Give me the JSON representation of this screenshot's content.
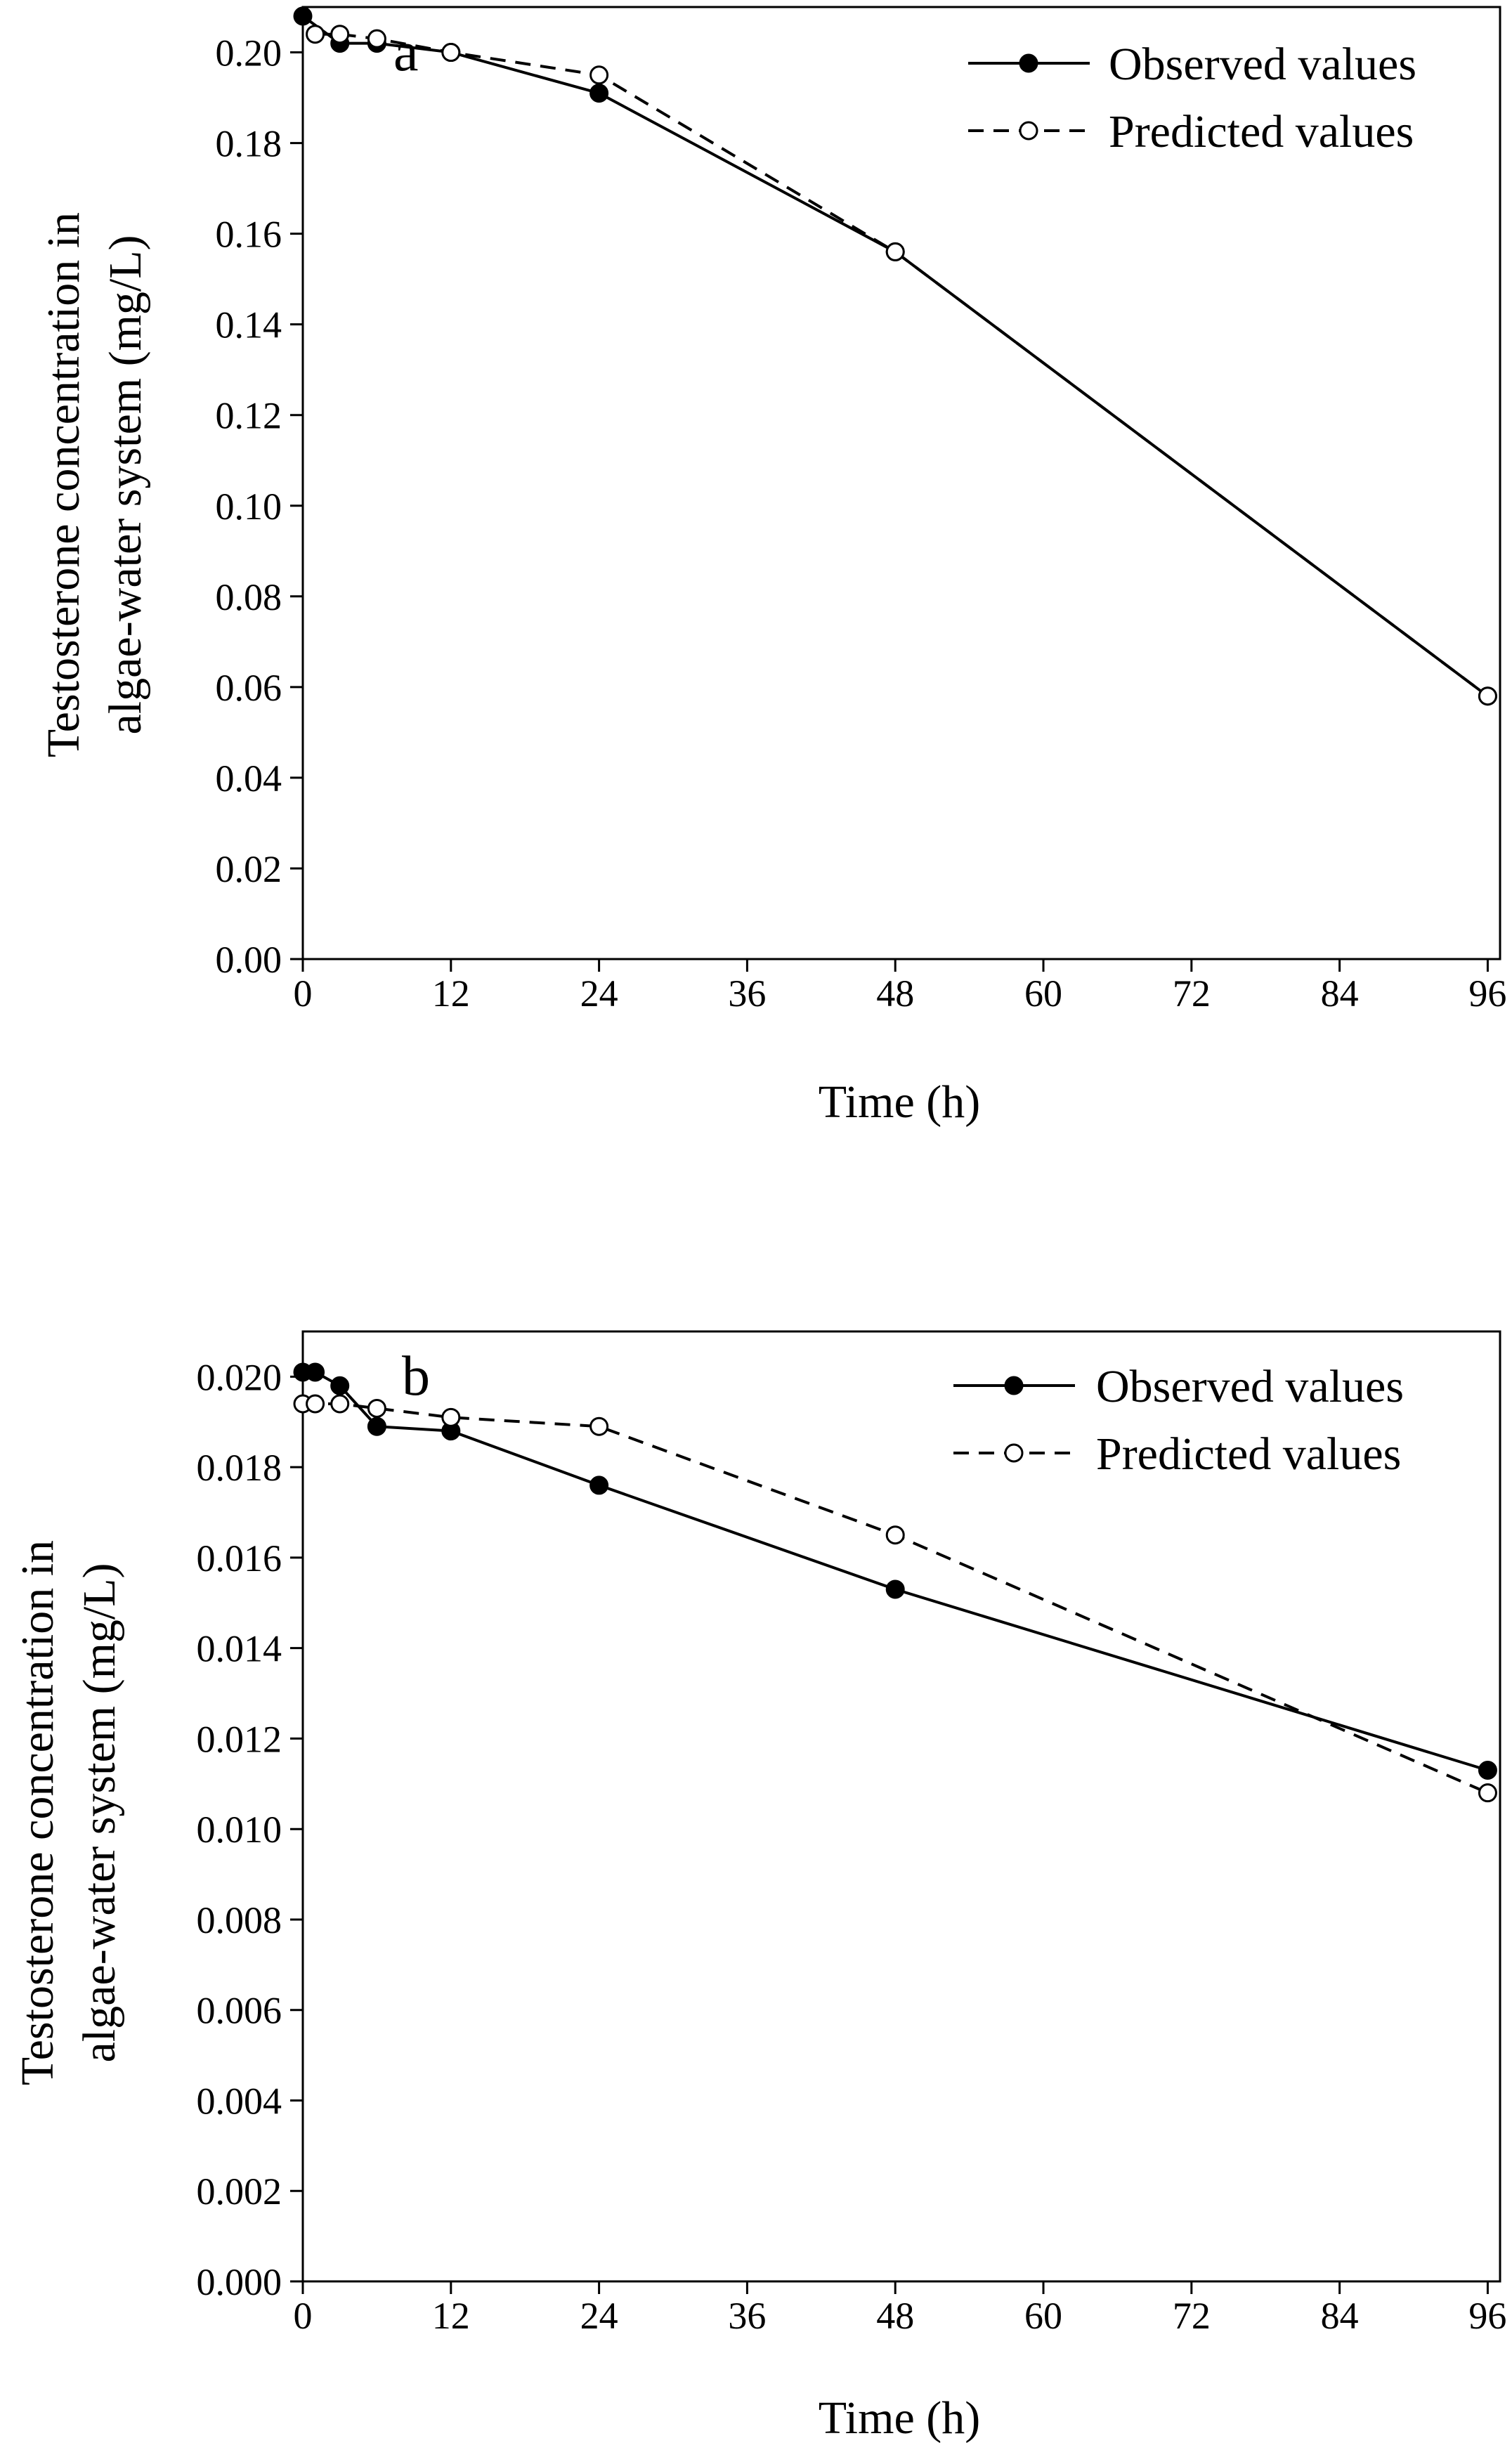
{
  "chart_data": [
    {
      "type": "line",
      "panel_label": "a",
      "xlabel": "Time (h)",
      "ylabel_lines": [
        "Testosterone concentration in",
        "algae-water system (mg/L)"
      ],
      "xlim": [
        0,
        97
      ],
      "ylim": [
        0,
        0.21
      ],
      "xticks": [
        0,
        12,
        24,
        36,
        48,
        60,
        72,
        84,
        96
      ],
      "xtick_labels": [
        "0",
        "12",
        "24",
        "36",
        "48",
        "60",
        "72",
        "84",
        "96"
      ],
      "yticks": [
        0,
        0.02,
        0.04,
        0.06,
        0.08,
        0.1,
        0.12,
        0.14,
        0.16,
        0.18,
        0.2
      ],
      "ytick_labels": [
        "0.00",
        "0.02",
        "0.04",
        "0.06",
        "0.08",
        "0.10",
        "0.12",
        "0.14",
        "0.16",
        "0.18",
        "0.20"
      ],
      "legend_position": "top-right",
      "series": [
        {
          "name": "Observed values",
          "line": "solid",
          "marker": "filled-circle",
          "x": [
            0,
            3,
            6,
            12,
            24,
            48,
            96
          ],
          "y": [
            0.208,
            0.202,
            0.202,
            0.2,
            0.191,
            0.156,
            0.058
          ]
        },
        {
          "name": "Predicted values",
          "line": "dashed",
          "marker": "open-circle",
          "x": [
            1,
            3,
            6,
            12,
            24,
            48,
            96
          ],
          "y": [
            0.204,
            0.204,
            0.203,
            0.2,
            0.195,
            0.156,
            0.058
          ]
        }
      ]
    },
    {
      "type": "line",
      "panel_label": "b",
      "xlabel": "Time (h)",
      "ylabel_lines": [
        "Testosterone concentration in",
        "algae-water system (mg/L)"
      ],
      "xlim": [
        0,
        97
      ],
      "ylim": [
        0,
        0.021
      ],
      "xticks": [
        0,
        12,
        24,
        36,
        48,
        60,
        72,
        84,
        96
      ],
      "xtick_labels": [
        "0",
        "12",
        "24",
        "36",
        "48",
        "60",
        "72",
        "84",
        "96"
      ],
      "yticks": [
        0,
        0.002,
        0.004,
        0.006,
        0.008,
        0.01,
        0.012,
        0.014,
        0.016,
        0.018,
        0.02
      ],
      "ytick_labels": [
        "0.000",
        "0.002",
        "0.004",
        "0.006",
        "0.008",
        "0.010",
        "0.012",
        "0.014",
        "0.016",
        "0.018",
        "0.020"
      ],
      "legend_position": "top-right",
      "series": [
        {
          "name": "Observed values",
          "line": "solid",
          "marker": "filled-circle",
          "x": [
            0,
            1,
            3,
            6,
            12,
            24,
            48,
            96
          ],
          "y": [
            0.0201,
            0.0201,
            0.0198,
            0.0189,
            0.0188,
            0.0176,
            0.0153,
            0.0113
          ]
        },
        {
          "name": "Predicted values",
          "line": "dashed",
          "marker": "open-circle",
          "x": [
            0,
            1,
            3,
            6,
            12,
            24,
            48,
            96
          ],
          "y": [
            0.0194,
            0.0194,
            0.0194,
            0.0193,
            0.0191,
            0.0189,
            0.0165,
            0.0108
          ]
        }
      ]
    }
  ]
}
